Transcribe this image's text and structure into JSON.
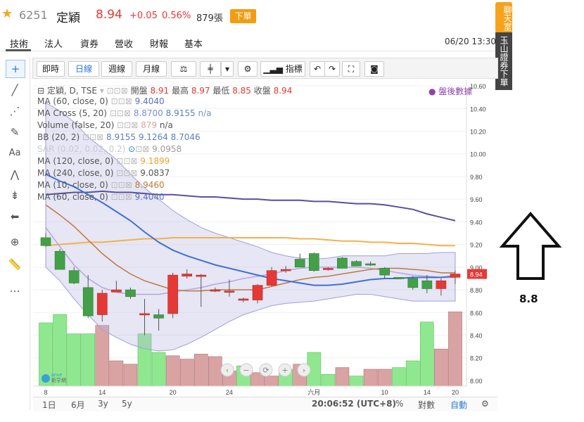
{
  "header": {
    "star": "★",
    "code": "6251",
    "name": "定穎",
    "price": "8.94",
    "change": "+0.05",
    "percent": "0.56%",
    "volume": "879張",
    "order_label": "下單"
  },
  "tabs": [
    "技術",
    "法人",
    "資券",
    "營收",
    "財報",
    "基本"
  ],
  "timestamp": "06/20 13:30",
  "side": {
    "chat": "聊天室",
    "broker": "玉山證券下單"
  },
  "toolbar": {
    "intraday": "即時",
    "daily": "日線",
    "weekly": "週線",
    "monthly": "月線",
    "indicator": "指標"
  },
  "legend": {
    "main": "定穎, D, TSE",
    "open_label": "開盤",
    "open": "8.91",
    "high_label": "最高",
    "high": "8.97",
    "low_label": "最低",
    "low": "8.85",
    "close_label": "收盤",
    "close": "8.94",
    "after_hours": "盤後數據",
    "rows": [
      {
        "label": "MA (60, close, 0)",
        "value": "9.4040",
        "color": "#5b6fbf"
      },
      {
        "label": "MA Cross (5, 20)",
        "value": "8.8700",
        "value2": "8.9155",
        "suffix": "n/a",
        "color": "#7a8fd0"
      },
      {
        "label": "Volume (false, 20)",
        "value": "879",
        "suffix": "n/a",
        "color": "#e0a0a0"
      },
      {
        "label": "BB (20, 2)",
        "value": "8.9155",
        "value2": "9.1264",
        "value3": "8.7046",
        "color": "#5b7fc0"
      },
      {
        "label": "SAR (0.02, 0.02, 0.2)",
        "value": "9.0958",
        "color": "#c8c8d8"
      },
      {
        "label": "MA (120, close, 0)",
        "value": "9.1899",
        "color": "#f0a030"
      },
      {
        "label": "MA (240, close, 0)",
        "value": "9.0837",
        "color": "#555"
      },
      {
        "label": "MA (10, close, 0)",
        "value": "8.9460",
        "color": "#c07840"
      },
      {
        "label": "MA (60, close, 0)",
        "value": "9.4040",
        "color": "#5b6fbf"
      }
    ]
  },
  "bottom": {
    "r1d": "1日",
    "r6m": "6月",
    "r3y": "3y",
    "r5y": "5y",
    "clock": "20:06:52 (UTC+8)",
    "pct": "%",
    "log": "對數",
    "auto": "自動"
  },
  "annotation": "8.8",
  "chart_data": {
    "type": "candlestick",
    "y_ticks": [
      "10.60",
      "10.40",
      "10.20",
      "10.00",
      "9.80",
      "9.60",
      "9.40",
      "9.20",
      "9.00",
      "8.80",
      "8.60",
      "8.40",
      "8.20",
      "8.00"
    ],
    "ylim": [
      7.95,
      10.65
    ],
    "x_ticks": [
      "8",
      "14",
      "20",
      "24",
      "六月",
      "10",
      "14",
      "20"
    ],
    "last_price_tag": "8.94",
    "colors": {
      "up": "#e53935",
      "down": "#43a047",
      "ma60": "#5a4f9e",
      "ma120": "#f5b04a",
      "ma20": "#3f6fd6",
      "ma10": "#c07840",
      "bb": "#b0b0dd"
    },
    "candles": [
      {
        "o": 9.26,
        "h": 9.3,
        "l": 9.18,
        "c": 9.19
      },
      {
        "o": 9.14,
        "h": 9.16,
        "l": 8.98,
        "c": 8.98
      },
      {
        "o": 8.97,
        "h": 9.0,
        "l": 8.85,
        "c": 8.86
      },
      {
        "o": 8.82,
        "h": 8.93,
        "l": 8.55,
        "c": 8.57
      },
      {
        "o": 8.58,
        "h": 8.8,
        "l": 8.52,
        "c": 8.77
      },
      {
        "o": 8.78,
        "h": 8.88,
        "l": 8.78,
        "c": 8.8
      },
      {
        "o": 8.8,
        "h": 8.82,
        "l": 8.72,
        "c": 8.74
      },
      {
        "o": 8.59,
        "h": 8.72,
        "l": 8.4,
        "c": 8.59
      },
      {
        "o": 8.58,
        "h": 8.63,
        "l": 8.44,
        "c": 8.55
      },
      {
        "o": 8.59,
        "h": 8.95,
        "l": 8.55,
        "c": 8.93
      },
      {
        "o": 8.92,
        "h": 8.98,
        "l": 8.9,
        "c": 8.94
      },
      {
        "o": 8.92,
        "h": 8.94,
        "l": 8.65,
        "c": 8.93
      },
      {
        "o": 8.8,
        "h": 8.82,
        "l": 8.78,
        "c": 8.8
      },
      {
        "o": 8.79,
        "h": 8.89,
        "l": 8.74,
        "c": 8.79
      },
      {
        "o": 8.71,
        "h": 8.73,
        "l": 8.69,
        "c": 8.72
      },
      {
        "o": 8.71,
        "h": 8.85,
        "l": 8.68,
        "c": 8.84
      },
      {
        "o": 8.84,
        "h": 9.0,
        "l": 8.83,
        "c": 8.97
      },
      {
        "o": 8.98,
        "h": 9.01,
        "l": 8.95,
        "c": 8.98
      },
      {
        "o": 9.07,
        "h": 9.12,
        "l": 9.0,
        "c": 9.0
      },
      {
        "o": 9.12,
        "h": 9.13,
        "l": 8.96,
        "c": 8.97
      },
      {
        "o": 8.98,
        "h": 9.0,
        "l": 8.97,
        "c": 8.99
      },
      {
        "o": 9.08,
        "h": 9.09,
        "l": 8.99,
        "c": 8.99
      },
      {
        "o": 9.05,
        "h": 9.06,
        "l": 9.01,
        "c": 9.01
      },
      {
        "o": 9.03,
        "h": 9.05,
        "l": 9.01,
        "c": 9.02
      },
      {
        "o": 8.99,
        "h": 9.0,
        "l": 8.9,
        "c": 8.93
      },
      {
        "o": 8.91,
        "h": 8.91,
        "l": 8.9,
        "c": 8.9
      },
      {
        "o": 8.9,
        "h": 8.92,
        "l": 8.8,
        "c": 8.82
      },
      {
        "o": 8.88,
        "h": 8.93,
        "l": 8.77,
        "c": 8.81
      },
      {
        "o": 8.81,
        "h": 8.9,
        "l": 8.75,
        "c": 8.88
      },
      {
        "o": 8.91,
        "h": 8.97,
        "l": 8.85,
        "c": 8.94
      }
    ],
    "volume": [
      {
        "v": 0.75,
        "up": false
      },
      {
        "v": 0.85,
        "up": false
      },
      {
        "v": 0.62,
        "up": false
      },
      {
        "v": 0.62,
        "up": false
      },
      {
        "v": 0.72,
        "up": true
      },
      {
        "v": 0.3,
        "up": true
      },
      {
        "v": 0.26,
        "up": true
      },
      {
        "v": 0.62,
        "up": false
      },
      {
        "v": 0.4,
        "up": false
      },
      {
        "v": 0.36,
        "up": true
      },
      {
        "v": 0.32,
        "up": true
      },
      {
        "v": 0.38,
        "up": true
      },
      {
        "v": 0.35,
        "up": true
      },
      {
        "v": 0.18,
        "up": true
      },
      {
        "v": 0.24,
        "up": false
      },
      {
        "v": 0.16,
        "up": true
      },
      {
        "v": 0.12,
        "up": true
      },
      {
        "v": 0.2,
        "up": false
      },
      {
        "v": 0.26,
        "up": true
      },
      {
        "v": 0.4,
        "up": false
      },
      {
        "v": 0.14,
        "up": false
      },
      {
        "v": 0.22,
        "up": true
      },
      {
        "v": 0.12,
        "up": false
      },
      {
        "v": 0.2,
        "up": true
      },
      {
        "v": 0.2,
        "up": true
      },
      {
        "v": 0.22,
        "up": false
      },
      {
        "v": 0.3,
        "up": false
      },
      {
        "v": 0.76,
        "up": false
      },
      {
        "v": 0.44,
        "up": true
      },
      {
        "v": 0.88,
        "up": true
      }
    ],
    "ma60": [
      9.64,
      9.65,
      9.66,
      9.66,
      9.67,
      9.66,
      9.66,
      9.65,
      9.64,
      9.64,
      9.63,
      9.62,
      9.62,
      9.61,
      9.6,
      9.6,
      9.59,
      9.59,
      9.59,
      9.58,
      9.58,
      9.57,
      9.56,
      9.56,
      9.55,
      9.53,
      9.51,
      9.47,
      9.44,
      9.41
    ],
    "ma120": [
      9.19,
      9.2,
      9.21,
      9.22,
      9.22,
      9.23,
      9.24,
      9.25,
      9.25,
      9.26,
      9.26,
      9.26,
      9.26,
      9.26,
      9.26,
      9.26,
      9.26,
      9.26,
      9.25,
      9.25,
      9.24,
      9.23,
      9.23,
      9.22,
      9.22,
      9.21,
      9.21,
      9.2,
      9.19,
      9.19
    ],
    "ma20": [
      9.82,
      9.76,
      9.71,
      9.64,
      9.57,
      9.49,
      9.41,
      9.31,
      9.22,
      9.15,
      9.1,
      9.06,
      9.02,
      8.99,
      8.96,
      8.93,
      8.9,
      8.88,
      8.86,
      8.84,
      8.84,
      8.85,
      8.87,
      8.89,
      8.9,
      8.9,
      8.91,
      8.91,
      8.91,
      8.92
    ],
    "ma10": [
      9.55,
      9.46,
      9.36,
      9.24,
      9.12,
      9.02,
      8.94,
      8.88,
      8.84,
      8.8,
      8.79,
      8.79,
      8.8,
      8.8,
      8.8,
      8.8,
      8.83,
      8.86,
      8.89,
      8.91,
      8.92,
      8.94,
      8.96,
      8.98,
      8.99,
      8.99,
      8.98,
      8.97,
      8.95,
      8.95
    ],
    "bb_upper": [
      10.45,
      10.38,
      10.28,
      10.15,
      10.05,
      9.95,
      9.82,
      9.7,
      9.6,
      9.5,
      9.42,
      9.35,
      9.3,
      9.26,
      9.22,
      9.18,
      9.13,
      9.1,
      9.08,
      9.07,
      9.08,
      9.1,
      9.1,
      9.1,
      9.1,
      9.12,
      9.12,
      9.12,
      9.13,
      9.13
    ],
    "bb_lower": [
      9.0,
      8.88,
      8.72,
      8.58,
      8.45,
      8.38,
      8.32,
      8.28,
      8.26,
      8.27,
      8.32,
      8.38,
      8.45,
      8.52,
      8.58,
      8.62,
      8.66,
      8.68,
      8.69,
      8.7,
      8.72,
      8.74,
      8.76,
      8.76,
      8.74,
      8.72,
      8.7,
      8.7,
      8.7,
      8.7
    ],
    "mid_line": [
      9.35,
      9.18,
      9.02,
      8.9,
      8.82,
      8.78,
      8.76,
      8.76,
      8.76,
      8.78,
      8.8,
      8.82,
      8.85,
      8.87,
      8.9,
      8.92,
      8.94,
      8.97,
      8.99,
      9.0,
      9.0,
      9.0,
      9.0,
      8.99,
      8.97,
      8.95,
      8.93,
      8.92,
      8.91,
      8.91
    ]
  }
}
